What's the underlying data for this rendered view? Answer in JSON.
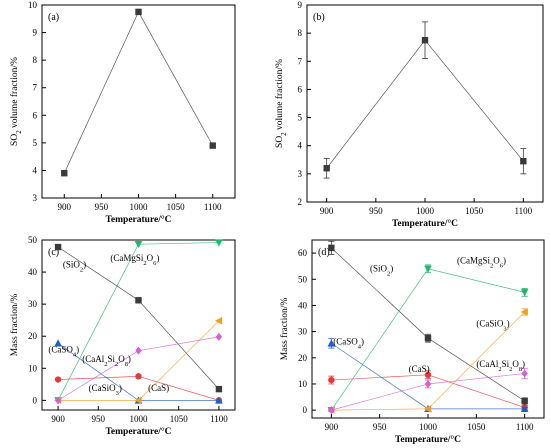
{
  "colors": {
    "black": "#3a3a3a",
    "red": "#e8383d",
    "blue": "#1f5fc8",
    "cyan": "#3cd6d0",
    "green": "#1fb86a",
    "orange": "#f0a020",
    "magenta": "#d65fd6"
  },
  "chart_data": [
    {
      "type": "line",
      "panel_label": "(a)",
      "xlabel": "Temperature/°C",
      "ylabel": "SO2 volume fraction/%",
      "xlim": [
        870,
        1130
      ],
      "ylim": [
        3,
        10
      ],
      "xticks": [
        900,
        950,
        1000,
        1050,
        1100
      ],
      "yticks": [
        3,
        4,
        5,
        6,
        7,
        8,
        9,
        10
      ],
      "series": [
        {
          "color": "black",
          "marker": "square",
          "line": "solid",
          "x": [
            900,
            1000,
            1100
          ],
          "y": [
            3.9,
            9.75,
            4.9
          ]
        }
      ]
    },
    {
      "type": "line",
      "panel_label": "(b)",
      "xlabel": "Temperature/°C",
      "ylabel": "SO2 volume fraction/%",
      "xlim": [
        880,
        1120
      ],
      "ylim": [
        2,
        9
      ],
      "xticks": [
        900,
        950,
        1000,
        1050,
        1100
      ],
      "yticks": [
        2,
        3,
        4,
        5,
        6,
        7,
        8,
        9
      ],
      "series": [
        {
          "color": "black",
          "marker": "square",
          "line": "solid",
          "x": [
            900,
            1000,
            1100
          ],
          "y": [
            3.2,
            7.75,
            3.45
          ],
          "err": [
            0.35,
            0.65,
            0.45
          ]
        }
      ]
    },
    {
      "type": "line",
      "panel_label": "(c)",
      "xlabel": "Temperature/°C",
      "ylabel": "Mass fraction/%",
      "xlim": [
        880,
        1120
      ],
      "ylim": [
        -3,
        50
      ],
      "xticks": [
        900,
        950,
        1000,
        1050,
        1100
      ],
      "yticks": [
        0,
        10,
        20,
        30,
        40,
        50
      ],
      "series": [
        {
          "name": "(SiO2)",
          "color": "black",
          "marker": "square",
          "x": [
            900,
            1000,
            1100
          ],
          "y": [
            47.8,
            31.2,
            3.5
          ]
        },
        {
          "name": "(CaS)",
          "color": "red",
          "marker": "circle",
          "x": [
            900,
            1000,
            1100
          ],
          "y": [
            6.5,
            7.5,
            0
          ]
        },
        {
          "name": "(CaSO4)",
          "color": "blue",
          "marker": "triangle-up",
          "x": [
            900,
            1000,
            1100
          ],
          "y": [
            17.8,
            0,
            0
          ]
        },
        {
          "name": "(CaMgSi2O6)",
          "color": "green",
          "marker": "triangle-down",
          "x": [
            900,
            1000,
            1100
          ],
          "y": [
            0,
            48.7,
            49.2
          ]
        },
        {
          "name": "(CaSiO3)",
          "color": "orange",
          "marker": "triangle-left",
          "x": [
            900,
            1000,
            1100
          ],
          "y": [
            0,
            0,
            24.8
          ]
        },
        {
          "name": "(CaAl2Si2O8)",
          "color": "magenta",
          "marker": "diamond",
          "x": [
            900,
            1000,
            1100
          ],
          "y": [
            0,
            15.5,
            19.8
          ]
        }
      ],
      "annotations": [
        {
          "text": "(SiO2)",
          "x": 906,
          "y": 41.5
        },
        {
          "text": "(CaMgSi2O6)",
          "x": 965,
          "y": 43.5
        },
        {
          "text": "(CaSO4)",
          "x": 888,
          "y": 15
        },
        {
          "text": "(CaAl2Si2O8)",
          "x": 930,
          "y": 12
        },
        {
          "text": "(CaSiO3)",
          "x": 938,
          "y": 3
        },
        {
          "text": "(CaS)",
          "x": 1012,
          "y": 3
        }
      ]
    },
    {
      "type": "line",
      "panel_label": "(d)",
      "xlabel": "Temperature/°C",
      "ylabel": "Mass fraction/%",
      "xlim": [
        880,
        1120
      ],
      "ylim": [
        -3,
        65
      ],
      "xticks": [
        900,
        950,
        1000,
        1050,
        1100
      ],
      "yticks": [
        0,
        10,
        20,
        30,
        40,
        50,
        60
      ],
      "series": [
        {
          "name": "(SiO2)",
          "color": "black",
          "marker": "square",
          "x": [
            900,
            1000,
            1100
          ],
          "y": [
            62,
            27.5,
            3.5
          ],
          "err": [
            2.5,
            1.5,
            1.2
          ]
        },
        {
          "name": "(CaS)",
          "color": "red",
          "marker": "circle",
          "x": [
            900,
            1000,
            1100
          ],
          "y": [
            11.5,
            13.5,
            1
          ],
          "err": [
            1.5,
            1.5,
            0.8
          ]
        },
        {
          "name": "(CaSO4)",
          "color": "blue",
          "marker": "triangle-up",
          "x": [
            900,
            1000,
            1100
          ],
          "y": [
            25.5,
            0.5,
            0.5
          ],
          "err": [
            1.8,
            0.5,
            0.5
          ]
        },
        {
          "name": "(CaMgSi2O6)",
          "color": "green",
          "marker": "triangle-down",
          "x": [
            900,
            1000,
            1100
          ],
          "y": [
            0,
            54,
            45
          ],
          "err": [
            0.5,
            1.5,
            1.5
          ]
        },
        {
          "name": "(CaSiO3)",
          "color": "orange",
          "marker": "triangle-left",
          "x": [
            900,
            1000,
            1100
          ],
          "y": [
            0,
            0.5,
            37.5
          ],
          "err": [
            0.5,
            0.5,
            1.2
          ]
        },
        {
          "name": "(CaAl2Si2O8)",
          "color": "magenta",
          "marker": "diamond",
          "x": [
            900,
            1000,
            1100
          ],
          "y": [
            0,
            10,
            14
          ],
          "err": [
            0.5,
            1.5,
            2
          ]
        }
      ],
      "annotations": [
        {
          "text": "(SiO2)",
          "x": 940,
          "y": 53
        },
        {
          "text": "(CaMgSi2O6)",
          "x": 1030,
          "y": 56
        },
        {
          "text": "(CaSiO3)",
          "x": 1050,
          "y": 32
        },
        {
          "text": "(CaSO4)",
          "x": 902,
          "y": 25
        },
        {
          "text": "(CaS)",
          "x": 980,
          "y": 14.5
        },
        {
          "text": "(CaAl2Si2O8)",
          "x": 1050,
          "y": 16.5
        }
      ]
    }
  ]
}
